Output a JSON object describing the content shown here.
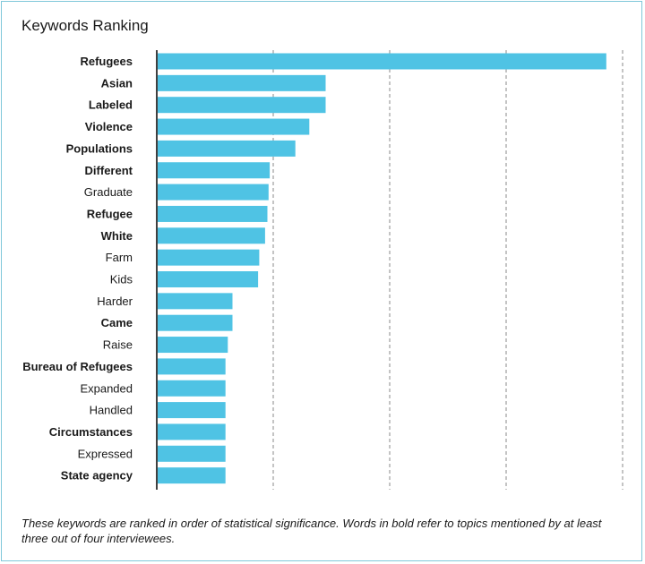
{
  "title": "Keywords Ranking",
  "footnote": "These keywords are ranked in order of statistical significance. Words in bold refer to topics mentioned by at least three out of four interviewees.",
  "colors": {
    "bar": "#4fc3e4",
    "gridline": "#888888",
    "axis": "#000000",
    "border": "#7fc7d9"
  },
  "chart_data": {
    "type": "bar",
    "orientation": "horizontal",
    "title": "Keywords Ranking",
    "xlabel": "",
    "ylabel": "",
    "xlim": [
      0,
      4
    ],
    "grid": "vertical dashed",
    "categories": [
      "Refugees",
      "Asian",
      "Labeled",
      "Violence",
      "Populations",
      "Different",
      "Graduate",
      "Refugee",
      "White",
      "Farm",
      "Kids",
      "Harder",
      "Came",
      "Raise",
      "Bureau of Refugees",
      "Expanded",
      "Handled",
      "Circumstances",
      "Expressed",
      "State agency"
    ],
    "bold": [
      true,
      true,
      true,
      true,
      true,
      true,
      false,
      true,
      true,
      false,
      false,
      false,
      true,
      false,
      true,
      false,
      false,
      true,
      false,
      true
    ],
    "values": [
      3.86,
      1.45,
      1.45,
      1.31,
      1.19,
      0.97,
      0.96,
      0.95,
      0.93,
      0.88,
      0.87,
      0.65,
      0.65,
      0.61,
      0.59,
      0.59,
      0.59,
      0.59,
      0.59,
      0.59
    ]
  }
}
